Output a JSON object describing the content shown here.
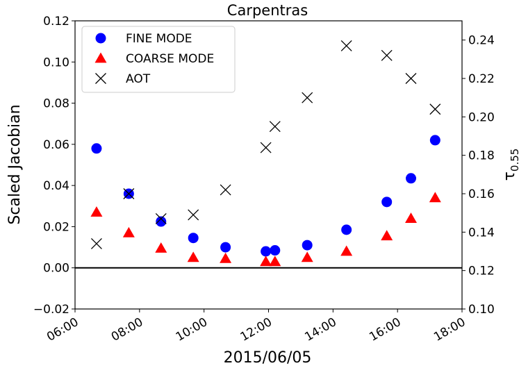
{
  "chart_data": {
    "type": "scatter",
    "title": "Carpentras",
    "xlabel": "2015/06/05",
    "ylabel": "Scaled Jacobian",
    "y2label_main": "τ",
    "y2label_sub": "0.55",
    "xlim": [
      "06:00",
      "18:00"
    ],
    "ylim": [
      -0.02,
      0.12
    ],
    "y2lim": [
      0.1,
      0.25
    ],
    "xticks": [
      "06:00",
      "08:00",
      "10:00",
      "12:00",
      "14:00",
      "16:00",
      "18:00"
    ],
    "yticks": [
      "−0.02",
      "0.00",
      "0.02",
      "0.04",
      "0.06",
      "0.08",
      "0.10",
      "0.12"
    ],
    "y2ticks": [
      "0.10",
      "0.12",
      "0.14",
      "0.16",
      "0.18",
      "0.20",
      "0.22",
      "0.24"
    ],
    "zero_line": 0,
    "legend_position": "top-left",
    "grid": false,
    "series": [
      {
        "name": "FINE MODE",
        "marker": "circle",
        "color": "#0000ff",
        "axis": "left",
        "x": [
          "06:40",
          "07:40",
          "08:40",
          "09:40",
          "10:40",
          "11:55",
          "12:12",
          "13:12",
          "14:25",
          "15:40",
          "16:25",
          "17:10"
        ],
        "y": [
          0.058,
          0.036,
          0.0225,
          0.0145,
          0.01,
          0.008,
          0.0085,
          0.011,
          0.0185,
          0.032,
          0.0435,
          0.062
        ]
      },
      {
        "name": "COARSE MODE",
        "marker": "triangle",
        "color": "#ff0000",
        "axis": "left",
        "x": [
          "06:40",
          "07:40",
          "08:40",
          "09:40",
          "10:40",
          "11:55",
          "12:12",
          "13:12",
          "14:25",
          "15:40",
          "16:25",
          "17:10"
        ],
        "y": [
          0.027,
          0.017,
          0.0095,
          0.005,
          0.0045,
          0.003,
          0.003,
          0.005,
          0.008,
          0.0155,
          0.024,
          0.034
        ]
      },
      {
        "name": "AOT",
        "marker": "x",
        "color": "#000000",
        "axis": "right",
        "x": [
          "06:40",
          "07:40",
          "08:40",
          "09:40",
          "10:40",
          "11:55",
          "12:12",
          "13:12",
          "14:25",
          "15:40",
          "16:25",
          "17:10"
        ],
        "y": [
          0.134,
          0.16,
          0.147,
          0.149,
          0.162,
          0.184,
          0.195,
          0.21,
          0.237,
          0.232,
          0.22,
          0.204
        ]
      }
    ]
  }
}
